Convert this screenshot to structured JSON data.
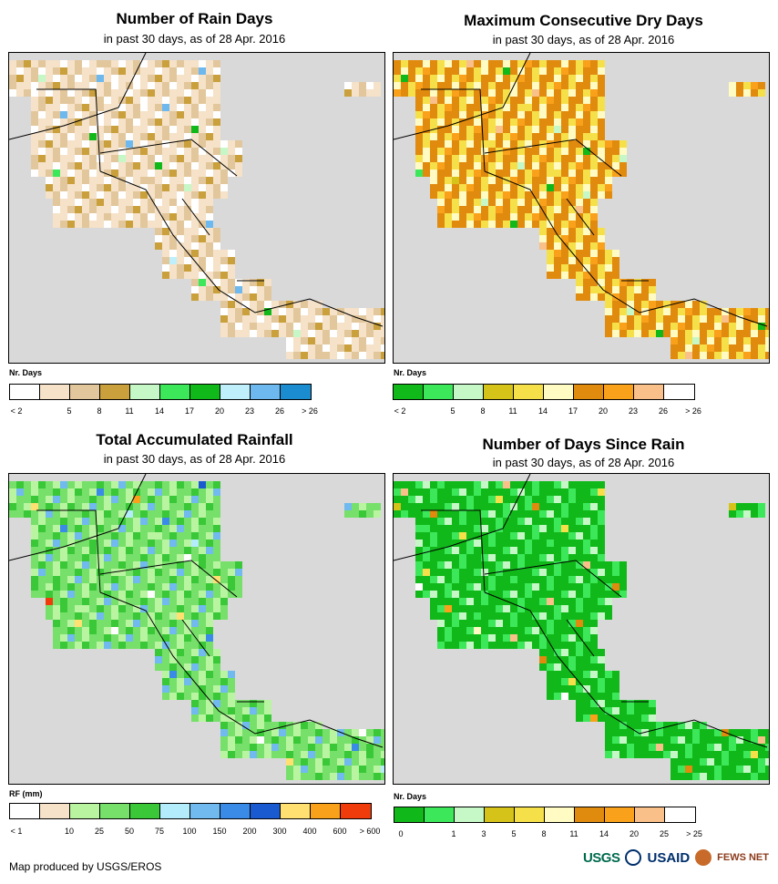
{
  "footer": {
    "credit": "Map produced by USGS/EROS"
  },
  "logos": {
    "usgs": "USGS",
    "usaid": "USAID",
    "fews": "FEWS NET"
  },
  "panels": [
    {
      "title": "Number of Rain Days",
      "subtitle": "in past 30 days, as of 28 Apr. 2016",
      "legend_title": "Nr. Days",
      "colors": [
        "#ffffff",
        "#f5e2c8",
        "#e3c79c",
        "#c9a03c",
        "#c6f7c6",
        "#3ce85a",
        "#11b819",
        "#bfeffa",
        "#6db8ee",
        "#1a8ccf"
      ],
      "labels": [
        "< 2",
        "5",
        "8",
        "11",
        "14",
        "17",
        "20",
        "23",
        "26",
        "> 26"
      ],
      "dominant": [
        "#f5e2c8",
        "#e3c79c",
        "#ffffff",
        "#c9a03c"
      ]
    },
    {
      "title": "Maximum Consecutive Dry Days",
      "subtitle": "in past 30 days, as of 28 Apr. 2016",
      "legend_title": "Nr. Days",
      "colors": [
        "#11b819",
        "#3ce85a",
        "#c6f7c6",
        "#d6c31a",
        "#f6e04a",
        "#fffbc2",
        "#e08a0e",
        "#f9a11a",
        "#f9c08a",
        "#ffffff"
      ],
      "labels": [
        "< 2",
        "5",
        "8",
        "11",
        "14",
        "17",
        "20",
        "23",
        "26",
        "> 26"
      ],
      "dominant": [
        "#e08a0e",
        "#f6e04a",
        "#fffbc2",
        "#f9a11a"
      ]
    },
    {
      "title": "Total Accumulated Rainfall",
      "subtitle": "in past 30 days, as of 28 Apr. 2016",
      "legend_title": "RF (mm)",
      "colors": [
        "#ffffff",
        "#f5e2c8",
        "#b9f5a0",
        "#76e06a",
        "#3ac838",
        "#b3ecfa",
        "#70baf0",
        "#3a8ae8",
        "#1a5ad0",
        "#ffe070",
        "#f9a11a",
        "#f03c0a"
      ],
      "labels": [
        "< 1",
        "10",
        "25",
        "50",
        "75",
        "100",
        "150",
        "200",
        "300",
        "400",
        "600",
        "> 600"
      ],
      "dominant": [
        "#76e06a",
        "#b9f5a0",
        "#3ac838",
        "#70baf0"
      ]
    },
    {
      "title": "Number of Days Since Rain",
      "subtitle": "in past 30 days, as of 28 Apr. 2016",
      "legend_title": "Nr. Days",
      "colors": [
        "#11b819",
        "#3ce85a",
        "#c6f7c6",
        "#d6c31a",
        "#f6e04a",
        "#fffbc2",
        "#e08a0e",
        "#f9a11a",
        "#f9c08a",
        "#ffffff"
      ],
      "labels": [
        "0",
        "1",
        "3",
        "5",
        "8",
        "11",
        "14",
        "20",
        "25",
        "> 25"
      ],
      "dominant": [
        "#11b819",
        "#3ce85a",
        "#11b819",
        "#c6f7c6"
      ]
    }
  ]
}
